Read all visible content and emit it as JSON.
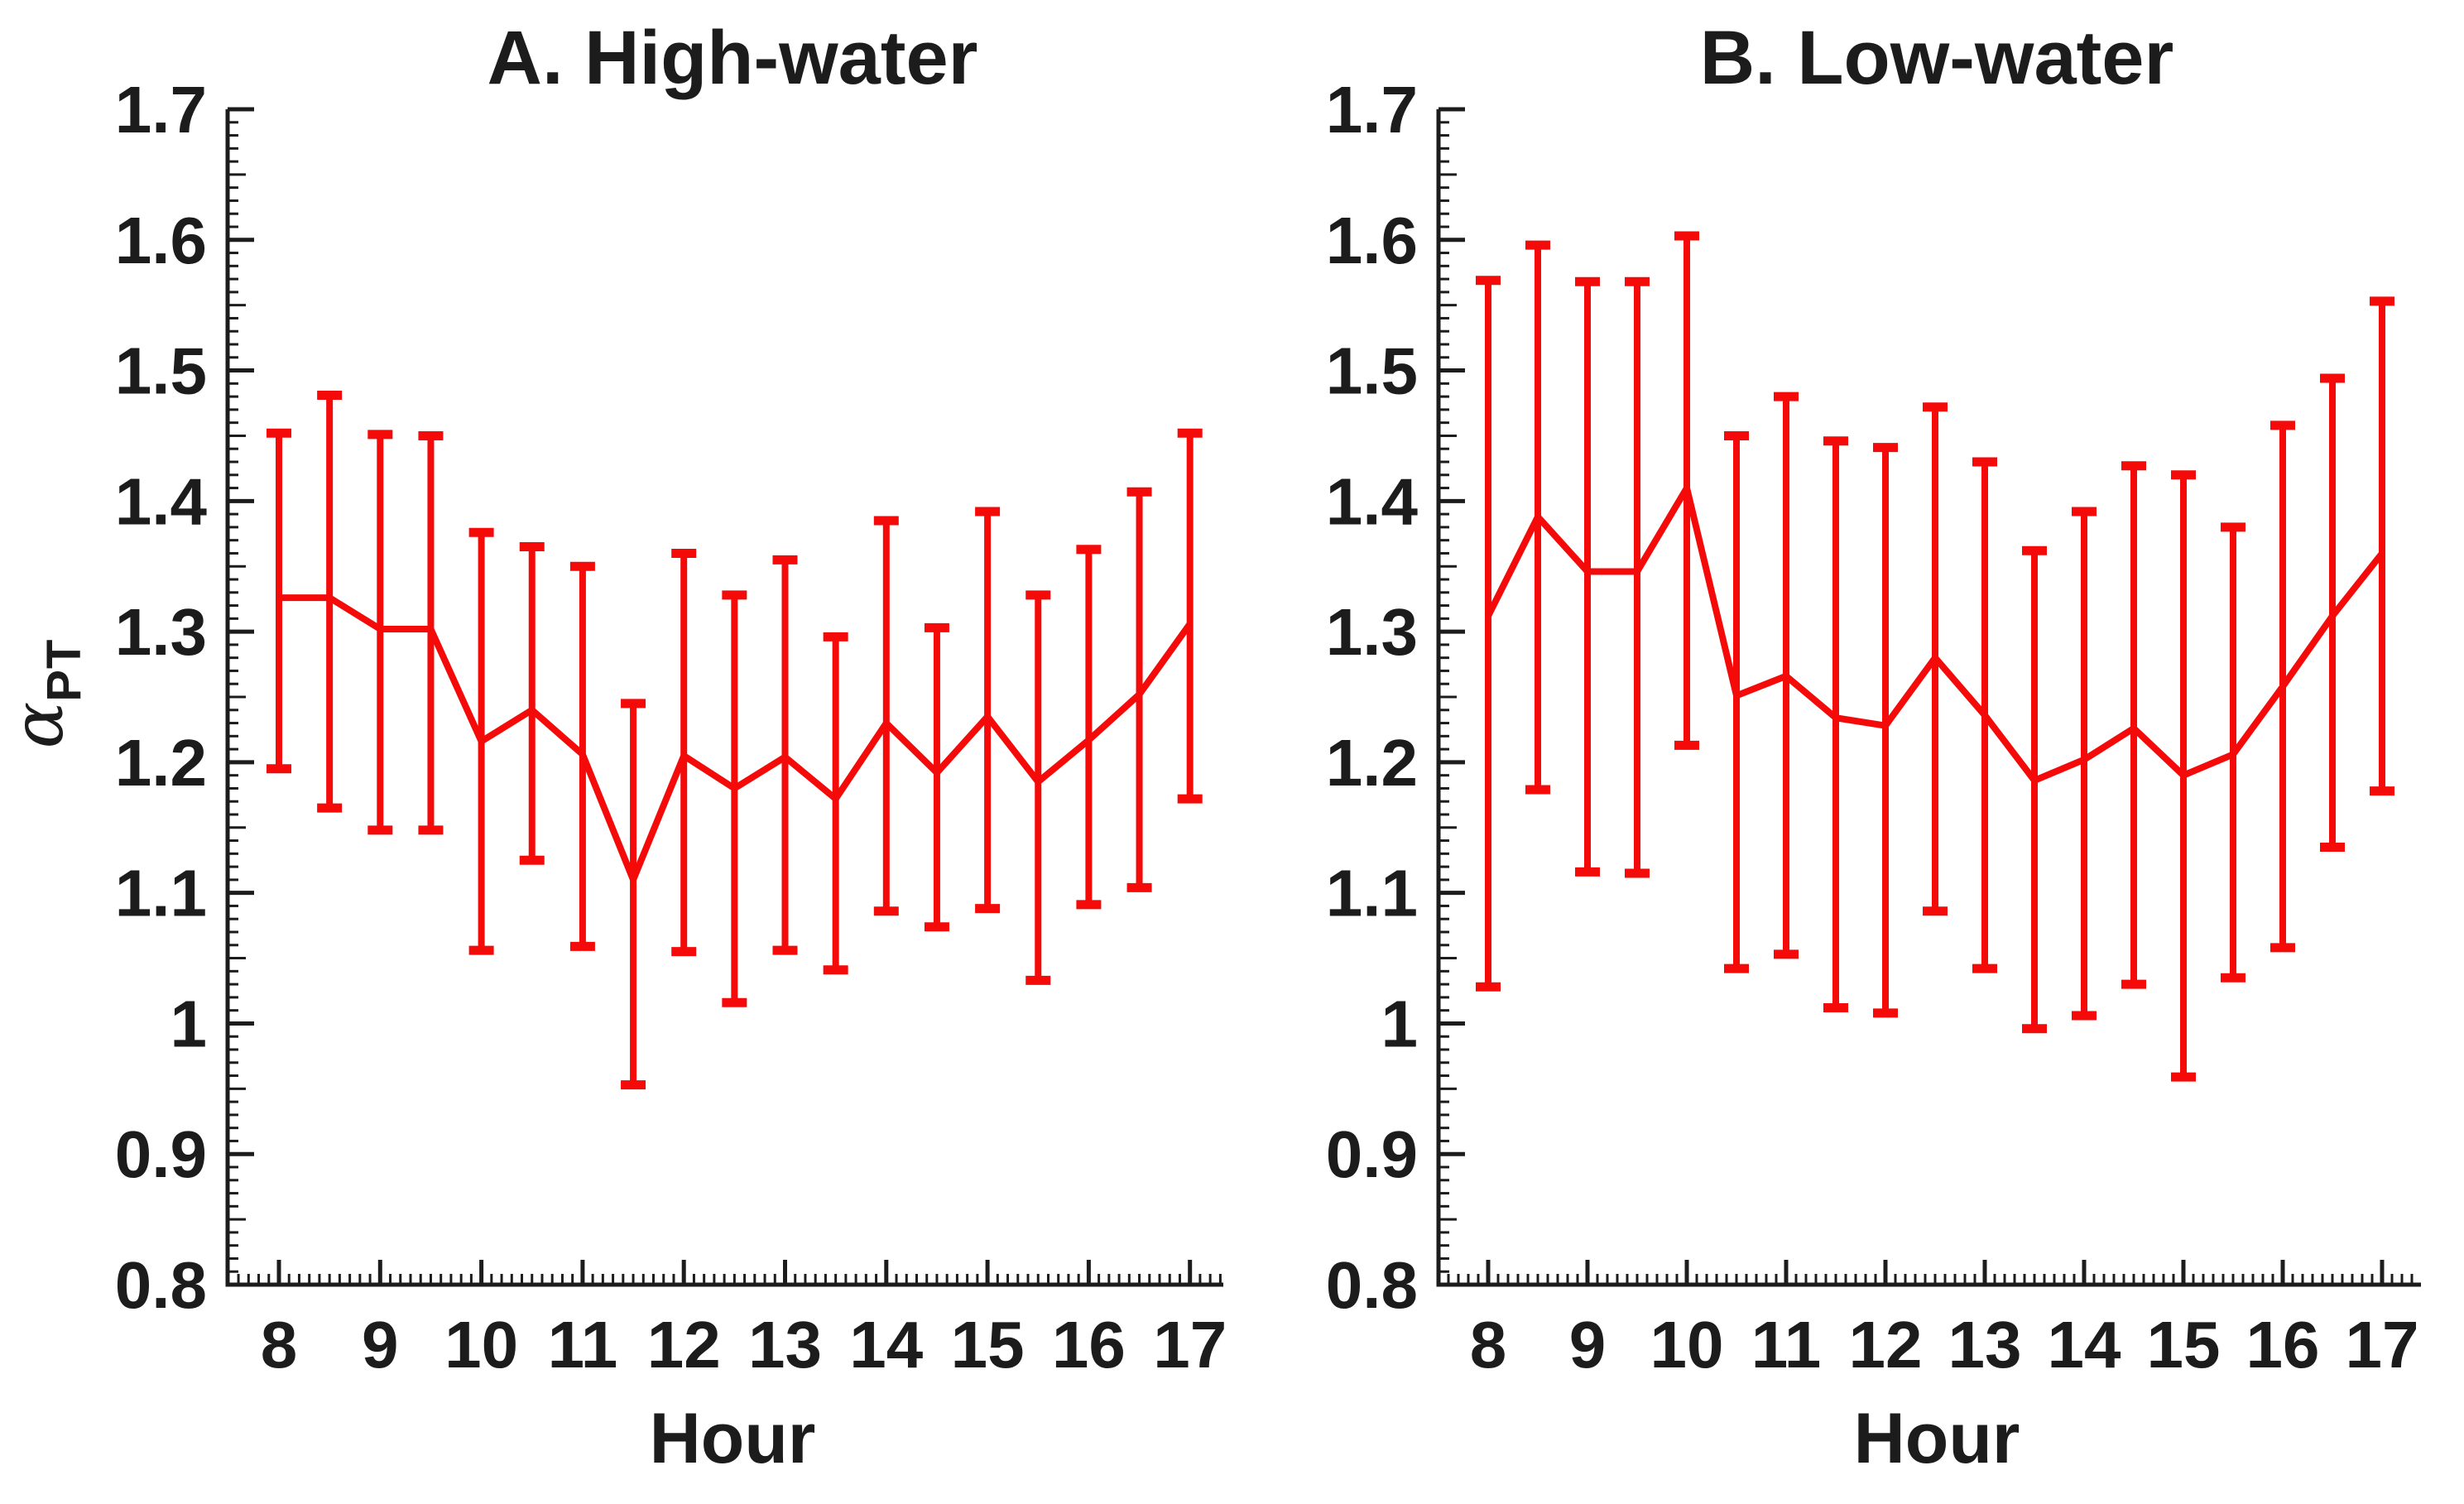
{
  "figure": {
    "background": "#ffffff",
    "series_color": "#f50a0a",
    "axis_color": "#1c1c1c",
    "text_color": "#1c1c1c"
  },
  "chart_data": [
    {
      "type": "line",
      "title": "A. High-water",
      "xlabel": "Hour",
      "ylabel_main": "α",
      "ylabel_sub": "PT",
      "legend": "none",
      "grid": false,
      "error_bars": true,
      "xlim": [
        7.49,
        17.33
      ],
      "ylim": [
        0.8,
        1.7
      ],
      "xticks": [
        8,
        9,
        10,
        11,
        12,
        13,
        14,
        15,
        16,
        17
      ],
      "xticklabels": [
        "8",
        "9",
        "10",
        "11",
        "12",
        "13",
        "14",
        "15",
        "16",
        "17"
      ],
      "yticks": [
        0.8,
        0.9,
        1.0,
        1.1,
        1.2,
        1.3,
        1.4,
        1.5,
        1.6,
        1.7
      ],
      "yticklabels": [
        "0.8",
        "0.9",
        "1",
        "1.1",
        "1.2",
        "1.3",
        "1.4",
        "1.5",
        "1.6",
        "1.7"
      ],
      "minor_x_step": 0.1,
      "minor_y_step": 0.01,
      "x": [
        8,
        8.5,
        9,
        9.5,
        10,
        10.5,
        11,
        11.5,
        12,
        12.5,
        13,
        13.5,
        14,
        14.5,
        15,
        15.5,
        16,
        16.5,
        17
      ],
      "series": [
        {
          "name": "mean alpha_PT",
          "values": [
            1.326,
            1.326,
            1.302,
            1.302,
            1.216,
            1.24,
            1.206,
            1.11,
            1.205,
            1.18,
            1.204,
            1.172,
            1.23,
            1.192,
            1.235,
            1.185,
            1.217,
            1.252,
            1.306
          ]
        }
      ],
      "error_upper": [
        1.452,
        1.481,
        1.451,
        1.45,
        1.376,
        1.365,
        1.35,
        1.245,
        1.36,
        1.328,
        1.355,
        1.296,
        1.385,
        1.303,
        1.392,
        1.328,
        1.363,
        1.407,
        1.452
      ],
      "error_lower": [
        1.195,
        1.165,
        1.148,
        1.148,
        1.056,
        1.125,
        1.059,
        0.953,
        1.055,
        1.016,
        1.056,
        1.041,
        1.086,
        1.074,
        1.088,
        1.033,
        1.091,
        1.104,
        1.172
      ]
    },
    {
      "type": "line",
      "title": "B. Low-water",
      "xlabel": "Hour",
      "ylabel_main": "α",
      "ylabel_sub": "PT",
      "legend": "none",
      "grid": false,
      "error_bars": true,
      "xlim": [
        7.5,
        17.39
      ],
      "ylim": [
        0.8,
        1.7
      ],
      "xticks": [
        8,
        9,
        10,
        11,
        12,
        13,
        14,
        15,
        16,
        17
      ],
      "xticklabels": [
        "8",
        "9",
        "10",
        "11",
        "12",
        "13",
        "14",
        "15",
        "16",
        "17"
      ],
      "yticks": [
        0.8,
        0.9,
        1.0,
        1.1,
        1.2,
        1.3,
        1.4,
        1.5,
        1.6,
        1.7
      ],
      "yticklabels": [
        "0.8",
        "0.9",
        "1",
        "1.1",
        "1.2",
        "1.3",
        "1.4",
        "1.5",
        "1.6",
        "1.7"
      ],
      "minor_x_step": 0.1,
      "minor_y_step": 0.01,
      "x": [
        8,
        8.5,
        9,
        9.5,
        10,
        10.5,
        11,
        11.5,
        12,
        12.5,
        13,
        13.5,
        14,
        14.5,
        15,
        15.5,
        16,
        16.5,
        17
      ],
      "series": [
        {
          "name": "mean alpha_PT",
          "values": [
            1.312,
            1.388,
            1.346,
            1.346,
            1.41,
            1.251,
            1.266,
            1.234,
            1.228,
            1.28,
            1.236,
            1.186,
            1.202,
            1.226,
            1.19,
            1.206,
            1.258,
            1.312,
            1.36
          ]
        }
      ],
      "error_upper": [
        1.569,
        1.596,
        1.568,
        1.568,
        1.603,
        1.45,
        1.48,
        1.446,
        1.441,
        1.472,
        1.43,
        1.362,
        1.392,
        1.427,
        1.42,
        1.38,
        1.458,
        1.494,
        1.553
      ],
      "error_lower": [
        1.028,
        1.179,
        1.116,
        1.115,
        1.213,
        1.042,
        1.053,
        1.012,
        1.008,
        1.086,
        1.042,
        0.996,
        1.006,
        1.03,
        0.959,
        1.035,
        1.058,
        1.135,
        1.178
      ]
    }
  ]
}
